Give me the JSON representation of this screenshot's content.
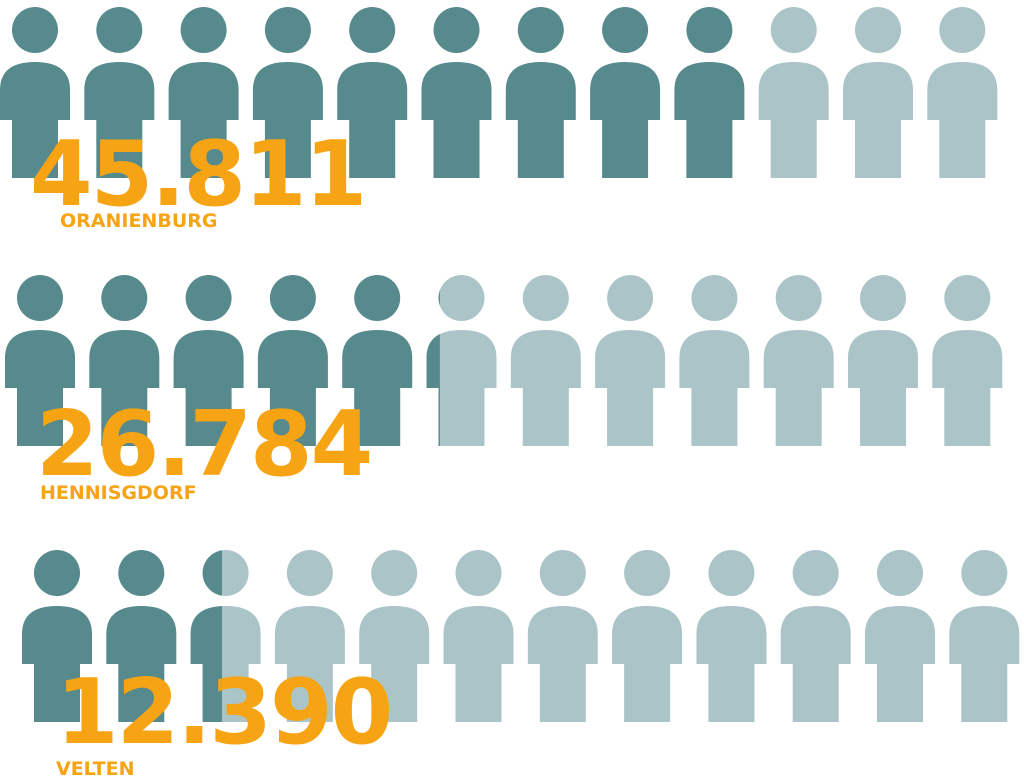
{
  "colors": {
    "filled": "#568a8d",
    "empty": "#abc4c8",
    "accent": "#f6a314"
  },
  "chart_data": {
    "type": "pictogram",
    "icons_per_row": 12,
    "series": [
      {
        "name": "ORANIENBURG",
        "value": "45.811",
        "filled_icons": 9.0
      },
      {
        "name": "HENNISGDORF",
        "value": "26.784",
        "filled_icons": 5.2
      },
      {
        "name": "VELTEN",
        "value": "12.390",
        "filled_icons": 2.45
      }
    ]
  }
}
